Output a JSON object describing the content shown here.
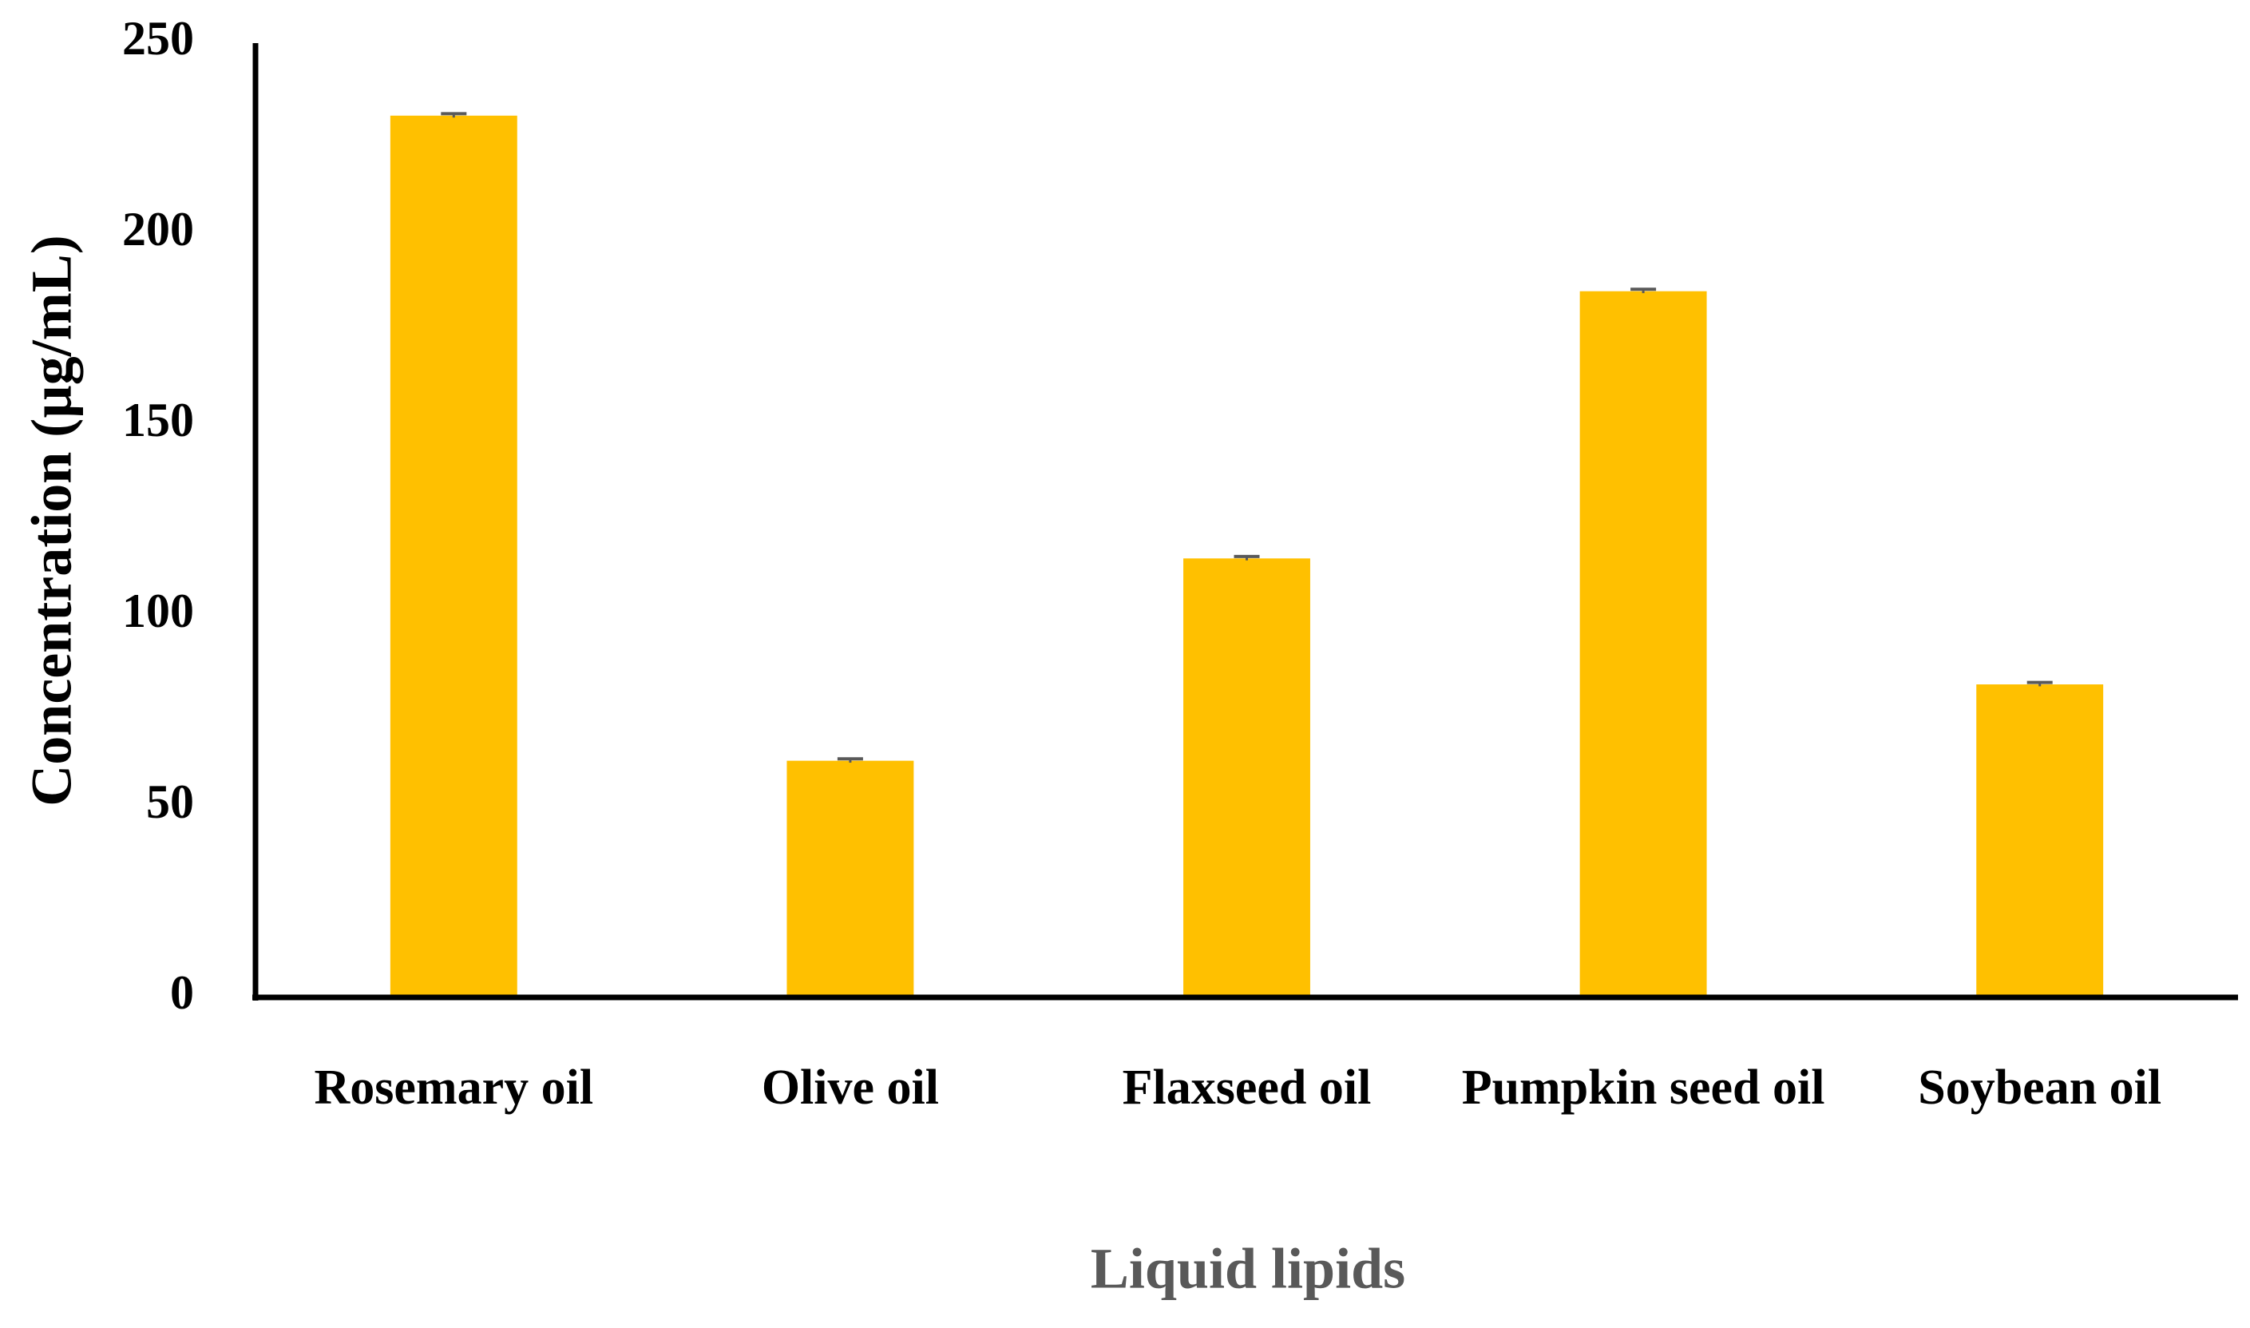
{
  "chart_data": {
    "type": "bar",
    "categories": [
      "Rosemary oil",
      "Olive oil",
      "Flaxseed oil",
      "Pumpkin seed oil",
      "Soybean oil"
    ],
    "values": [
      231,
      62,
      115,
      185,
      82
    ],
    "errors": [
      0.5,
      0.5,
      0.5,
      0.5,
      0.5
    ],
    "color": "#ffc000",
    "error_color": "#595959",
    "ylim": [
      0,
      250
    ],
    "yticks": [
      0,
      50,
      100,
      150,
      200,
      250
    ],
    "grid": false,
    "x_label": "Liquid lipids",
    "y_label": "Concentration (µg/mL)"
  }
}
